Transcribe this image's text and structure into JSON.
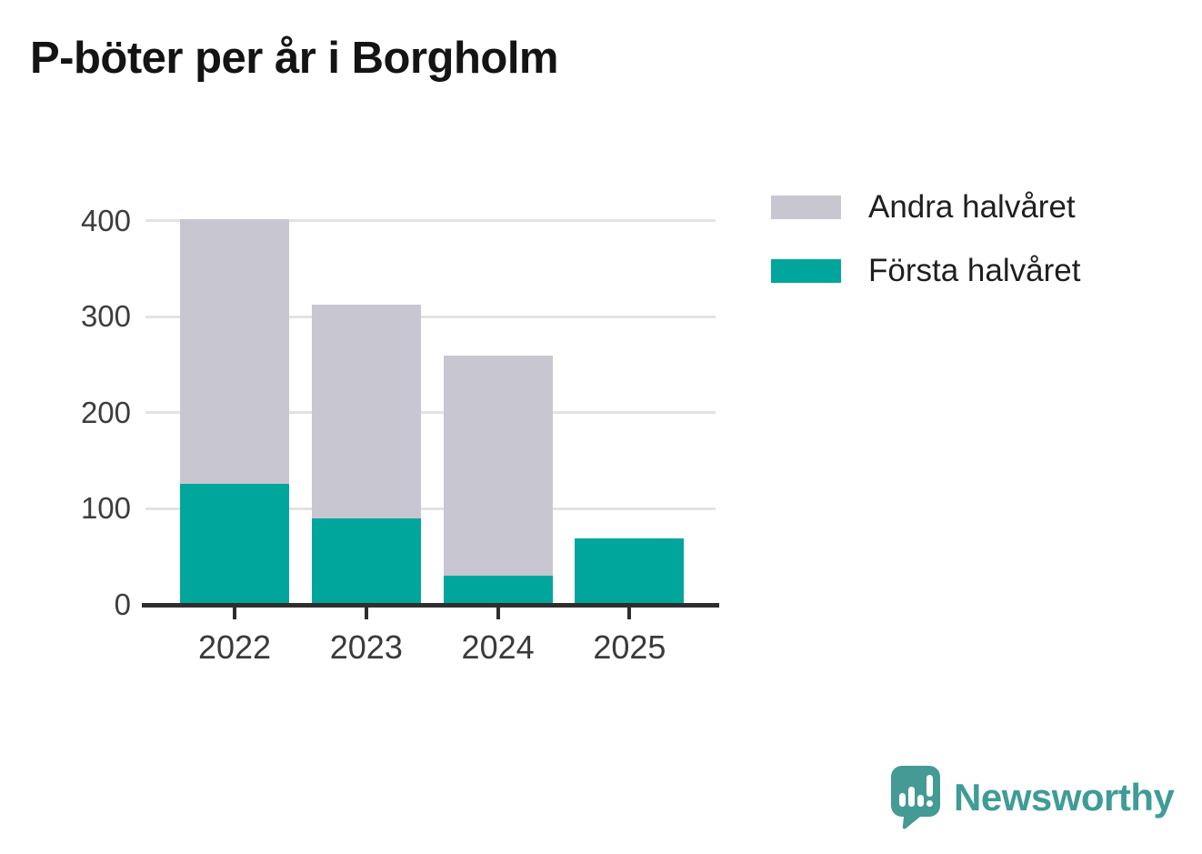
{
  "header": {
    "title": "P-böter per år i Borgholm"
  },
  "legend": {
    "items": [
      {
        "label": "Andra halvåret",
        "color": "#c8c6d0"
      },
      {
        "label": "Första halvåret",
        "color": "#00a69c"
      }
    ]
  },
  "branding": {
    "logo_text": "Newsworthy",
    "logo_color": "#459a95",
    "text_color": "#3f9c96"
  },
  "chart_data": {
    "type": "bar",
    "stacked": true,
    "title": "P-böter per år i Borgholm",
    "categories": [
      "2022",
      "2023",
      "2024",
      "2025"
    ],
    "series": [
      {
        "name": "Första halvåret",
        "color": "#00a69c",
        "values": [
          126,
          90,
          30,
          69
        ]
      },
      {
        "name": "Andra halvåret",
        "color": "#c8c6d0",
        "values": [
          276,
          223,
          230,
          0
        ]
      }
    ],
    "totals": [
      402,
      313,
      260,
      69
    ],
    "xlabel": "",
    "ylabel": "",
    "y_ticks": [
      0,
      100,
      200,
      300,
      400
    ],
    "ylim": [
      0,
      412
    ],
    "grid": "horizontal",
    "gridline_color": "#e3e3e3",
    "axis_color": "#2e2e2e",
    "legend_position": "top-right"
  }
}
